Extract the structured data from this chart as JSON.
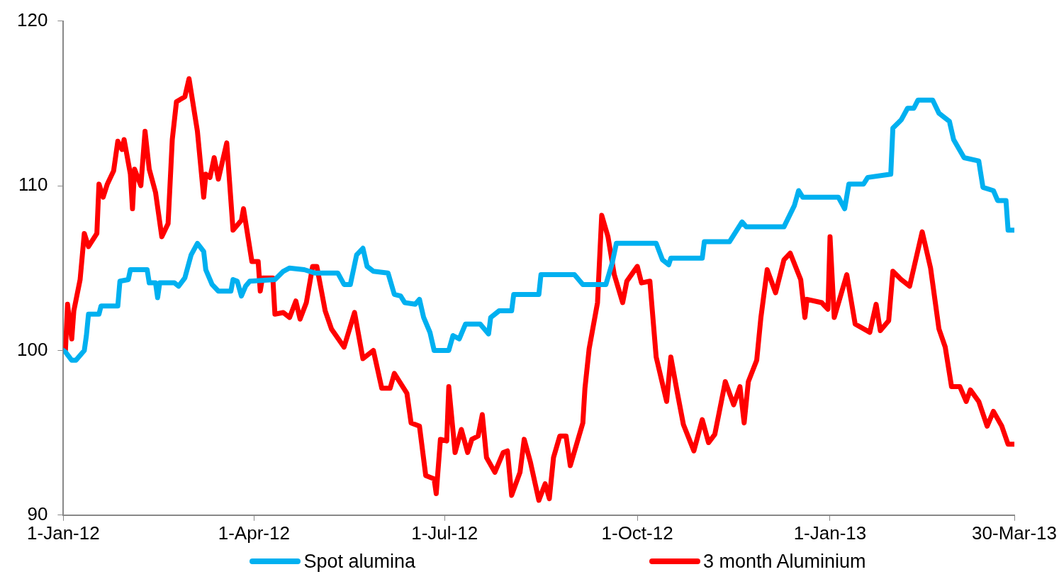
{
  "chart_data": {
    "type": "line",
    "xlim": [
      "2012-01-01",
      "2013-03-30"
    ],
    "xticks": [
      {
        "value": "2012-01-01",
        "label": "1-Jan-12"
      },
      {
        "value": "2012-04-01",
        "label": "1-Apr-12"
      },
      {
        "value": "2012-07-01",
        "label": "1-Jul-12"
      },
      {
        "value": "2012-10-01",
        "label": "1-Oct-12"
      },
      {
        "value": "2013-01-01",
        "label": "1-Jan-13"
      },
      {
        "value": "2013-03-30",
        "label": "30-Mar-13"
      }
    ],
    "ylim": [
      90,
      120
    ],
    "yticks": [
      90,
      100,
      110,
      120
    ],
    "grid": false,
    "legend": "bottom",
    "marker": "none",
    "line_style": "solid",
    "series": [
      {
        "name": "Spot alumina",
        "color": "#00b0f0",
        "x": [
          "2012-01-01",
          "2012-01-02",
          "2012-01-05",
          "2012-01-07",
          "2012-01-11",
          "2012-01-12",
          "2012-01-13",
          "2012-01-18",
          "2012-01-19",
          "2012-01-27",
          "2012-01-28",
          "2012-02-01",
          "2012-02-02",
          "2012-02-10",
          "2012-02-11",
          "2012-02-14",
          "2012-02-15",
          "2012-02-16",
          "2012-02-23",
          "2012-02-25",
          "2012-02-28",
          "2012-03-02",
          "2012-03-05",
          "2012-03-08",
          "2012-03-09",
          "2012-03-12",
          "2012-03-15",
          "2012-03-21",
          "2012-03-22",
          "2012-03-24",
          "2012-03-26",
          "2012-03-28",
          "2012-03-30",
          "2012-04-11",
          "2012-04-15",
          "2012-04-18",
          "2012-04-25",
          "2012-04-30",
          "2012-05-11",
          "2012-05-14",
          "2012-05-17",
          "2012-05-20",
          "2012-05-23",
          "2012-05-25",
          "2012-05-28",
          "2012-06-04",
          "2012-06-07",
          "2012-06-10",
          "2012-06-12",
          "2012-06-17",
          "2012-06-19",
          "2012-06-21",
          "2012-06-24",
          "2012-06-26",
          "2012-07-03",
          "2012-07-05",
          "2012-07-08",
          "2012-07-11",
          "2012-07-18",
          "2012-07-22",
          "2012-07-23",
          "2012-07-27",
          "2012-08-02",
          "2012-08-03",
          "2012-08-15",
          "2012-08-16",
          "2012-09-01",
          "2012-09-05",
          "2012-09-16",
          "2012-09-19",
          "2012-09-21",
          "2012-10-10",
          "2012-10-13",
          "2012-10-16",
          "2012-10-17",
          "2012-11-01",
          "2012-11-02",
          "2012-11-14",
          "2012-11-17",
          "2012-11-20",
          "2012-11-22",
          "2012-12-10",
          "2012-12-15",
          "2012-12-17",
          "2012-12-19",
          "2013-01-05",
          "2013-01-08",
          "2013-01-10",
          "2013-01-17",
          "2013-01-19",
          "2013-01-30",
          "2013-01-31",
          "2013-02-04",
          "2013-02-07",
          "2013-02-10",
          "2013-02-12",
          "2013-02-19",
          "2013-02-22",
          "2013-02-27",
          "2013-03-01",
          "2013-03-06",
          "2013-03-13",
          "2013-03-15",
          "2013-03-20",
          "2013-03-22",
          "2013-03-26",
          "2013-03-27",
          "2013-03-30"
        ],
        "values": [
          100.0,
          99.9,
          99.4,
          99.4,
          100.0,
          100.9,
          102.2,
          102.2,
          102.7,
          102.7,
          104.2,
          104.3,
          104.9,
          104.9,
          104.1,
          104.1,
          103.2,
          104.1,
          104.1,
          103.9,
          104.4,
          105.8,
          106.5,
          106.0,
          104.9,
          104.0,
          103.6,
          103.6,
          104.3,
          104.2,
          103.3,
          103.9,
          104.2,
          104.3,
          104.8,
          105.0,
          104.9,
          104.7,
          104.7,
          104.0,
          104.0,
          105.8,
          106.2,
          105.1,
          104.8,
          104.7,
          103.4,
          103.3,
          102.9,
          102.8,
          103.1,
          102.0,
          101.1,
          100.0,
          100.0,
          100.9,
          100.7,
          101.6,
          101.6,
          101.0,
          102.0,
          102.4,
          102.4,
          103.4,
          103.4,
          104.6,
          104.6,
          104.0,
          104.0,
          105.3,
          106.5,
          106.5,
          105.5,
          105.2,
          105.6,
          105.6,
          106.6,
          106.6,
          107.2,
          107.8,
          107.5,
          107.5,
          108.8,
          109.7,
          109.3,
          109.3,
          108.6,
          110.1,
          110.1,
          110.5,
          110.7,
          113.5,
          114.0,
          114.7,
          114.7,
          115.2,
          115.2,
          114.4,
          113.9,
          112.8,
          111.7,
          111.5,
          109.9,
          109.7,
          109.1,
          109.1,
          107.3,
          107.3
        ]
      },
      {
        "name": "3 month Aluminium",
        "color": "#ff0000",
        "x": [
          "2012-01-01",
          "2012-01-02",
          "2012-01-03",
          "2012-01-05",
          "2012-01-06",
          "2012-01-09",
          "2012-01-11",
          "2012-01-13",
          "2012-01-17",
          "2012-01-18",
          "2012-01-20",
          "2012-01-22",
          "2012-01-25",
          "2012-01-27",
          "2012-01-29",
          "2012-01-30",
          "2012-02-02",
          "2012-02-03",
          "2012-02-04",
          "2012-02-07",
          "2012-02-09",
          "2012-02-11",
          "2012-02-14",
          "2012-02-17",
          "2012-02-20",
          "2012-02-22",
          "2012-02-24",
          "2012-02-28",
          "2012-03-01",
          "2012-03-05",
          "2012-03-08",
          "2012-03-09",
          "2012-03-11",
          "2012-03-13",
          "2012-03-15",
          "2012-03-19",
          "2012-03-22",
          "2012-03-26",
          "2012-03-27",
          "2012-03-31",
          "2012-04-03",
          "2012-04-04",
          "2012-04-05",
          "2012-04-10",
          "2012-04-11",
          "2012-04-15",
          "2012-04-18",
          "2012-04-21",
          "2012-04-23",
          "2012-04-26",
          "2012-04-29",
          "2012-05-01",
          "2012-05-05",
          "2012-05-08",
          "2012-05-14",
          "2012-05-19",
          "2012-05-23",
          "2012-05-28",
          "2012-06-01",
          "2012-06-05",
          "2012-06-07",
          "2012-06-13",
          "2012-06-15",
          "2012-06-19",
          "2012-06-22",
          "2012-06-26",
          "2012-06-27",
          "2012-06-29",
          "2012-07-02",
          "2012-07-03",
          "2012-07-06",
          "2012-07-09",
          "2012-07-12",
          "2012-07-14",
          "2012-07-17",
          "2012-07-19",
          "2012-07-21",
          "2012-07-25",
          "2012-07-29",
          "2012-07-31",
          "2012-08-02",
          "2012-08-06",
          "2012-08-08",
          "2012-08-11",
          "2012-08-15",
          "2012-08-18",
          "2012-08-20",
          "2012-08-22",
          "2012-08-25",
          "2012-08-28",
          "2012-08-30",
          "2012-09-05",
          "2012-09-06",
          "2012-09-08",
          "2012-09-12",
          "2012-09-14",
          "2012-09-17",
          "2012-09-20",
          "2012-09-24",
          "2012-09-26",
          "2012-10-01",
          "2012-10-03",
          "2012-10-07",
          "2012-10-10",
          "2012-10-15",
          "2012-10-17",
          "2012-10-20",
          "2012-10-23",
          "2012-10-28",
          "2012-11-01",
          "2012-11-04",
          "2012-11-07",
          "2012-11-12",
          "2012-11-16",
          "2012-11-19",
          "2012-11-21",
          "2012-11-23",
          "2012-11-27",
          "2012-11-29",
          "2012-12-02",
          "2012-12-06",
          "2012-12-10",
          "2012-12-13",
          "2012-12-18",
          "2012-12-20",
          "2012-12-21",
          "2012-12-28",
          "2012-12-31",
          "2013-01-01",
          "2013-01-03",
          "2013-01-09",
          "2013-01-13",
          "2013-01-20",
          "2013-01-23",
          "2013-01-25",
          "2013-01-29",
          "2013-01-31",
          "2013-02-04",
          "2013-02-08",
          "2013-02-14",
          "2013-02-18",
          "2013-02-22",
          "2013-02-25",
          "2013-02-28",
          "2013-03-04",
          "2013-03-07",
          "2013-03-09",
          "2013-03-13",
          "2013-03-17",
          "2013-03-20",
          "2013-03-24",
          "2013-03-27",
          "2013-03-30"
        ],
        "values": [
          100.0,
          100.0,
          102.8,
          100.7,
          102.4,
          104.3,
          107.1,
          106.3,
          107.1,
          110.1,
          109.3,
          110.1,
          110.9,
          112.7,
          112.2,
          112.8,
          110.7,
          108.6,
          111.0,
          110.0,
          113.3,
          111.0,
          109.6,
          106.9,
          107.7,
          112.8,
          115.1,
          115.4,
          116.5,
          113.3,
          109.3,
          110.7,
          110.5,
          111.7,
          110.4,
          112.6,
          107.3,
          107.9,
          108.6,
          105.4,
          105.4,
          103.6,
          104.4,
          104.4,
          102.2,
          102.3,
          102.0,
          103.0,
          101.9,
          102.9,
          105.1,
          105.1,
          102.4,
          101.3,
          100.2,
          102.3,
          99.5,
          100.0,
          97.7,
          97.7,
          98.6,
          97.4,
          95.6,
          95.4,
          92.4,
          92.2,
          91.3,
          94.6,
          94.5,
          97.8,
          93.8,
          95.2,
          93.8,
          94.6,
          94.8,
          96.1,
          93.5,
          92.6,
          93.8,
          93.9,
          91.2,
          92.6,
          94.6,
          93.2,
          90.9,
          91.9,
          91.0,
          93.5,
          94.8,
          94.8,
          93.0,
          95.6,
          97.7,
          100.1,
          102.9,
          108.2,
          106.9,
          104.6,
          102.9,
          104.2,
          105.1,
          104.1,
          104.2,
          99.6,
          96.9,
          99.6,
          97.5,
          95.5,
          93.9,
          95.8,
          94.4,
          94.9,
          98.1,
          96.7,
          97.8,
          95.6,
          98.1,
          99.4,
          102.0,
          104.9,
          103.5,
          105.5,
          105.9,
          104.3,
          102.0,
          103.1,
          102.9,
          102.5,
          106.9,
          102.0,
          104.6,
          101.6,
          101.1,
          102.8,
          101.2,
          101.8,
          104.8,
          104.3,
          103.9,
          107.2,
          105.0,
          101.3,
          100.2,
          97.8,
          97.8,
          96.9,
          97.6,
          96.9,
          95.4,
          96.3,
          95.4,
          94.3,
          94.3
        ]
      }
    ]
  }
}
